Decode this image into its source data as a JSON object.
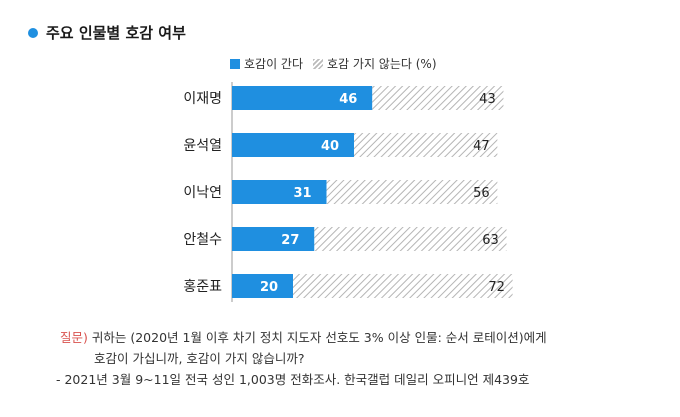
{
  "header": {
    "title": "주요 인물별 호감 여부"
  },
  "legend": {
    "positive": "호감이 간다",
    "negative": "호감 가지 않는다 (%)"
  },
  "colors": {
    "positive": "#1f8fe0",
    "hatch": "#b5b5b5"
  },
  "chart_data": {
    "type": "bar",
    "orientation": "horizontal",
    "stacked": true,
    "categories": [
      "이재명",
      "윤석열",
      "이낙연",
      "안철수",
      "홍준표"
    ],
    "series": [
      {
        "name": "호감이 간다",
        "values": [
          46,
          40,
          31,
          27,
          20
        ]
      },
      {
        "name": "호감 가지 않는다",
        "values": [
          43,
          47,
          56,
          63,
          72
        ]
      }
    ],
    "units": "%",
    "legend_position": "top"
  },
  "footer": {
    "question_label": "질문)",
    "question_line1": "귀하는 (2020년 1월 이후 차기 정치 지도자 선호도 3% 이상 인물: 순서 로테이션)에게",
    "question_line2": "호감이 가십니까, 호감이 가지 않습니까?",
    "source": "- 2021년 3월 9~11일 전국 성인 1,003명 전화조사. 한국갤럽 데일리 오피니언 제439호"
  }
}
